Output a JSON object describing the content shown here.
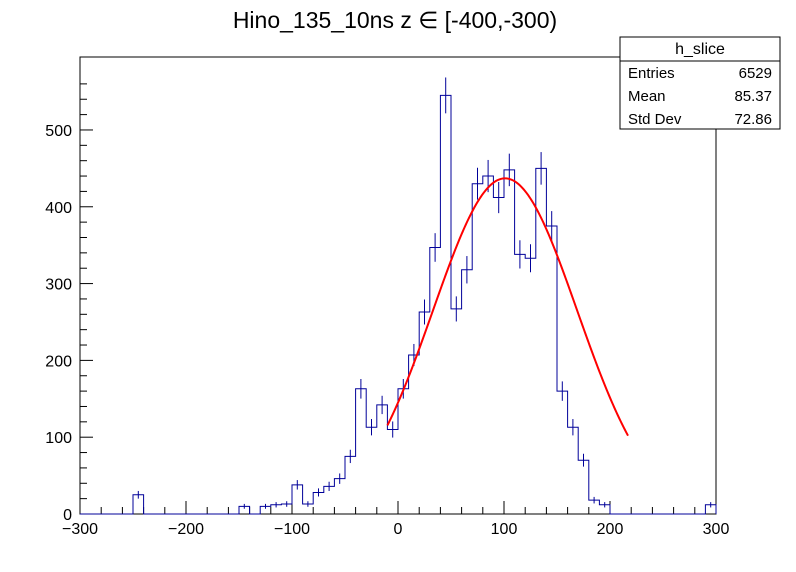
{
  "chart_data": {
    "type": "histogram",
    "title": "Hino_135_10ns z  ∈ [-400,-300)",
    "xlabel": "",
    "ylabel": "",
    "xlim": [
      -300,
      300
    ],
    "ylim": [
      0,
      595
    ],
    "x_ticks": [
      "−300",
      "−200",
      "−100",
      "0",
      "100",
      "200",
      "300"
    ],
    "x_tick_values": [
      -300,
      -200,
      -100,
      0,
      100,
      200,
      300
    ],
    "y_ticks": [
      "0",
      "100",
      "200",
      "300",
      "400",
      "500"
    ],
    "y_tick_values": [
      0,
      100,
      200,
      300,
      400,
      500
    ],
    "bin_width": 10,
    "bin_start": -300,
    "bin_values": [
      0,
      0,
      0,
      0,
      0,
      25,
      0,
      0,
      0,
      0,
      0,
      0,
      0,
      0,
      0,
      10,
      0,
      10,
      12,
      13,
      38,
      13,
      28,
      36,
      46,
      75,
      163,
      113,
      142,
      110,
      163,
      207,
      263,
      347,
      545,
      267,
      318,
      430,
      440,
      412,
      448,
      338,
      333,
      450,
      375,
      160,
      113,
      70,
      18,
      12,
      0,
      0,
      0,
      0,
      0,
      0,
      0,
      0,
      0,
      12
    ],
    "hist_color": "#000099",
    "fit": {
      "name": "gaus",
      "color": "#ff0000",
      "constant": 437,
      "mean": 101,
      "sigma": 68,
      "x_range": [
        -10,
        217
      ]
    },
    "stats": {
      "name": "h_slice",
      "rows": [
        {
          "label": "Entries",
          "value": "6529"
        },
        {
          "label": "Mean",
          "value": "85.37"
        },
        {
          "label": "Std Dev",
          "value": "72.86"
        }
      ]
    }
  }
}
